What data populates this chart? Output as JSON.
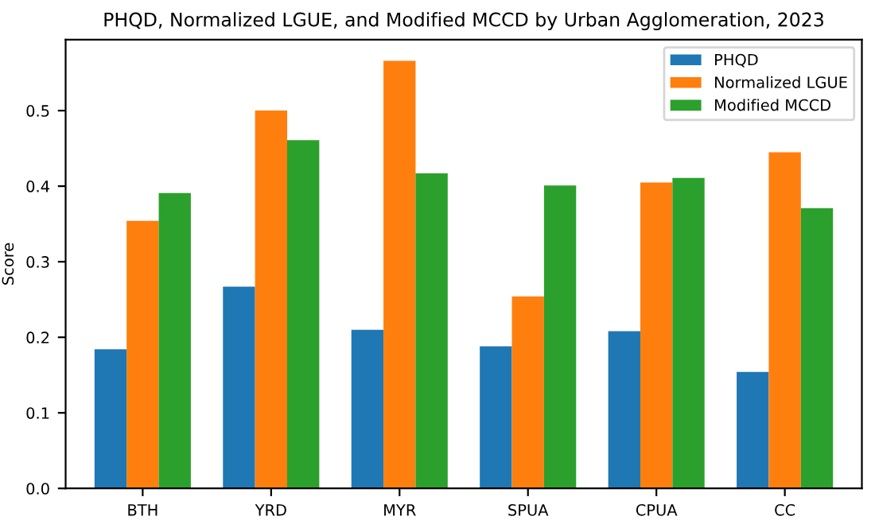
{
  "chart_data": {
    "type": "bar",
    "title": "PHQD, Normalized LGUE, and Modified MCCD by Urban Agglomeration, 2023",
    "ylabel": "Score",
    "categories": [
      "BTH",
      "YRD",
      "MYR",
      "SPUA",
      "CPUA",
      "CC"
    ],
    "series": [
      {
        "name": "PHQD",
        "color": "#1f77b4",
        "values": [
          0.184,
          0.267,
          0.21,
          0.188,
          0.208,
          0.154
        ]
      },
      {
        "name": "Normalized LGUE",
        "color": "#ff7f0e",
        "values": [
          0.354,
          0.5,
          0.566,
          0.254,
          0.405,
          0.445
        ]
      },
      {
        "name": "Modified MCCD",
        "color": "#2ca02c",
        "values": [
          0.391,
          0.461,
          0.417,
          0.401,
          0.411,
          0.371
        ]
      }
    ],
    "ylim": [
      0,
      0.594
    ],
    "yticks": [
      {
        "value": 0,
        "label": "0.0"
      },
      0.1,
      0.2,
      0.3,
      0.4,
      0.5
    ],
    "legend": "top right",
    "grid": false
  }
}
